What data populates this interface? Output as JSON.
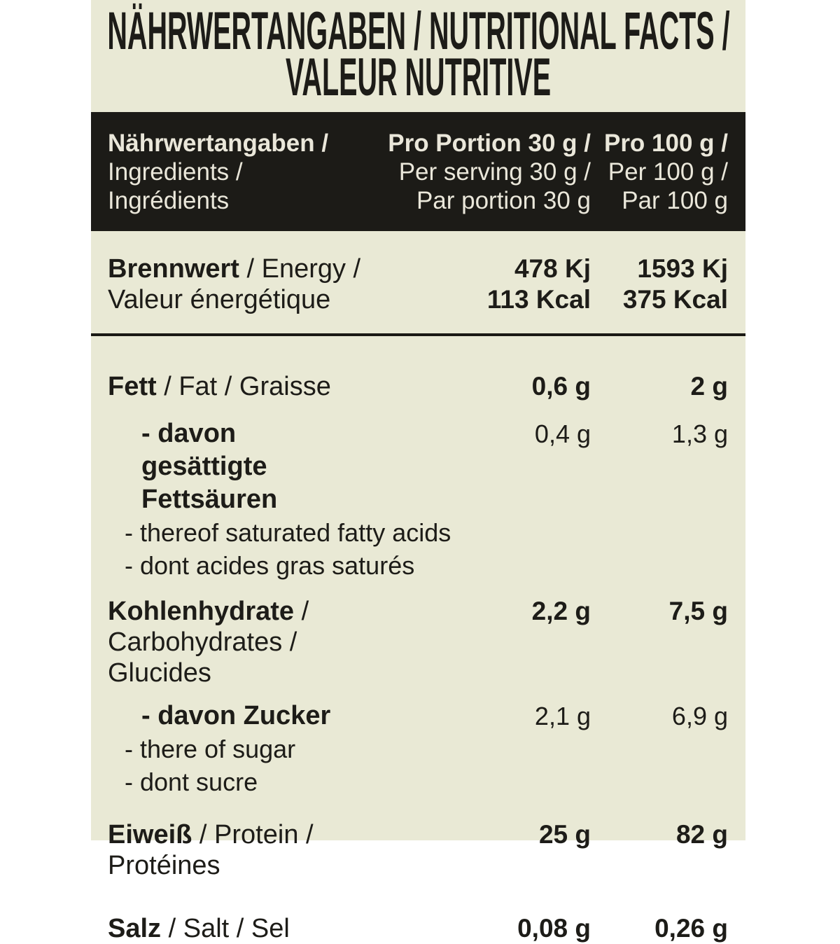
{
  "colors": {
    "page_background": "#ffffff",
    "label_background": "#e9e9d5",
    "header_bar_background": "#1c1b17",
    "header_text": "#eae7da",
    "body_text": "#1d1c18",
    "divider": "#1a1914"
  },
  "title": {
    "line1": "NÄHRWERTANGABEN / NUTRITIONAL FACTS /",
    "line2": "VALEUR NUTRITIVE"
  },
  "header": {
    "label_col": {
      "line1": "Nährwertangaben /",
      "line2": "Ingredients /",
      "line3": "Ingrédients"
    },
    "serving_col": {
      "line1": "Pro Portion 30 g /",
      "line2": "Per serving 30 g /",
      "line3": "Par portion 30 g"
    },
    "per100_col": {
      "line1": "Pro 100 g /",
      "line2": "Per 100 g /",
      "line3": "Par 100 g"
    }
  },
  "rows": {
    "energy": {
      "de": "Brennwert",
      "rest": " / Energy /",
      "line2": "Valeur énergétique",
      "v30_kj": "478 Kj",
      "v30_kcal": "113 Kcal",
      "v100_kj": "1593 Kj",
      "v100_kcal": "375 Kcal"
    },
    "fat": {
      "de": "Fett",
      "rest": " / Fat / Graisse",
      "v30": "0,6 g",
      "v100": "2 g"
    },
    "fat_sub": {
      "line1": "- davon gesättigte Fettsäuren",
      "v30": "0,4 g",
      "v100": "1,3 g",
      "line2": "- thereof saturated fatty acids",
      "line3": "- dont acides gras saturés"
    },
    "carbs": {
      "de": "Kohlenhydrate",
      "rest": " / Carbohydrates /",
      "line2": "Glucides",
      "v30": "2,2 g",
      "v100": "7,5 g"
    },
    "carbs_sub": {
      "line1": "- davon Zucker",
      "v30": "2,1 g",
      "v100": "6,9 g",
      "line2": "- there of sugar",
      "line3": "- dont sucre"
    },
    "protein": {
      "de": "Eiweiß",
      "rest": " / Protein / Protéines",
      "v30": "25 g",
      "v100": "82 g"
    },
    "salt": {
      "de": "Salz",
      "rest": " / Salt / Sel",
      "v30": "0,08 g",
      "v100": "0,26 g"
    }
  }
}
